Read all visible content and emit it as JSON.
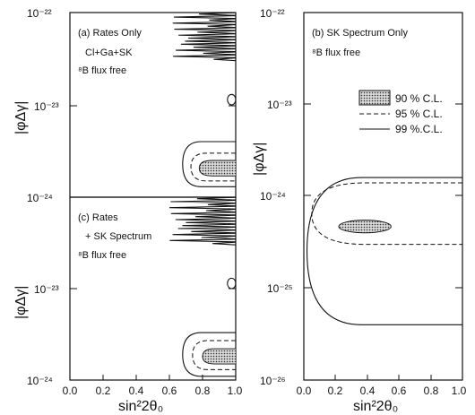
{
  "chart_data": {
    "type": "contour",
    "confidence_levels": [
      "90 % C.L.",
      "95 % C.L.",
      "99 %.C.L."
    ],
    "panels": [
      {
        "id": "a",
        "lines": [
          "(a) Rates Only",
          "Cl+Ga+SK",
          "⁸B flux free"
        ],
        "xlabel": "",
        "ylabel": "",
        "xlim": [
          0.0,
          1.0
        ],
        "ylim": [
          1e-24,
          1e-22
        ],
        "yscale": "log",
        "y_ticks": [
          "10⁻²²",
          "10⁻²³",
          "10⁻²⁴"
        ],
        "x_ticks": [],
        "regions": [
          {
            "level": "99",
            "x": [
              0.62,
              1.0
            ],
            "y": [
              1e-22,
              3e-23
            ],
            "shape": "oscillating band"
          },
          {
            "level": "99",
            "x": [
              0.95,
              1.0
            ],
            "y": [
              1e-23,
              1.3e-23
            ],
            "shape": "island"
          },
          {
            "level": "99",
            "x": [
              0.68,
              1.0
            ],
            "y": [
              1.3e-24,
              4e-24
            ],
            "shape": "region"
          },
          {
            "level": "95",
            "x": [
              0.73,
              1.0
            ],
            "y": [
              1.5e-24,
              3e-24
            ],
            "shape": "region"
          },
          {
            "level": "90",
            "x": [
              0.78,
              1.0
            ],
            "y": [
              1.7e-24,
              2.5e-24
            ],
            "shape": "region"
          }
        ]
      },
      {
        "id": "c",
        "lines": [
          "(c) Rates",
          "+ SK Spectrum",
          "⁸B flux free"
        ],
        "xlabel": "sin²2θ₀",
        "ylabel": "|φΔγ|",
        "xlim": [
          0.0,
          1.0
        ],
        "ylim": [
          1e-24,
          1e-22
        ],
        "yscale": "log",
        "y_ticks": [
          "10⁻²³",
          "10⁻²⁴"
        ],
        "x_ticks": [
          "0.0",
          "0.2",
          "0.4",
          "0.6",
          "0.8",
          "1.0"
        ],
        "regions": [
          {
            "level": "99",
            "x": [
              0.6,
              1.0
            ],
            "y": [
              1e-22,
              3e-23
            ],
            "shape": "oscillating band"
          },
          {
            "level": "99",
            "x": [
              0.95,
              1.0
            ],
            "y": [
              1e-23,
              1.3e-23
            ],
            "shape": "island"
          },
          {
            "level": "99",
            "x": [
              0.68,
              1.0
            ],
            "y": [
              1.1e-24,
              3.3e-24
            ],
            "shape": "region"
          },
          {
            "level": "95",
            "x": [
              0.74,
              1.0
            ],
            "y": [
              1.3e-24,
              2.7e-24
            ],
            "shape": "region"
          },
          {
            "level": "90",
            "x": [
              0.8,
              1.0
            ],
            "y": [
              1.5e-24,
              2.2e-24
            ],
            "shape": "region"
          }
        ]
      },
      {
        "id": "b",
        "lines": [
          "(b) SK Spectrum Only",
          "⁸B flux free"
        ],
        "xlabel": "sin²2θ₀",
        "ylabel": "|φΔγ|",
        "xlim": [
          0.0,
          1.0
        ],
        "ylim": [
          1e-26,
          1e-22
        ],
        "yscale": "log",
        "y_ticks": [
          "10⁻²²",
          "10⁻²³",
          "10⁻²⁴",
          "10⁻²⁵",
          "10⁻²⁶"
        ],
        "x_ticks": [
          "0.0",
          "0.2",
          "0.4",
          "0.6",
          "0.8",
          "1.0"
        ],
        "regions": [
          {
            "level": "99",
            "x": [
              0.02,
              1.0
            ],
            "y": [
              4e-26,
              1.6e-24
            ],
            "shape": "large region"
          },
          {
            "level": "95",
            "x": [
              0.05,
              1.0
            ],
            "y": [
              3e-25,
              1.4e-24
            ],
            "shape": "band"
          },
          {
            "level": "90",
            "x": [
              0.22,
              0.55
            ],
            "y": [
              4e-25,
              5.5e-25
            ],
            "shape": "island"
          }
        ]
      }
    ]
  }
}
